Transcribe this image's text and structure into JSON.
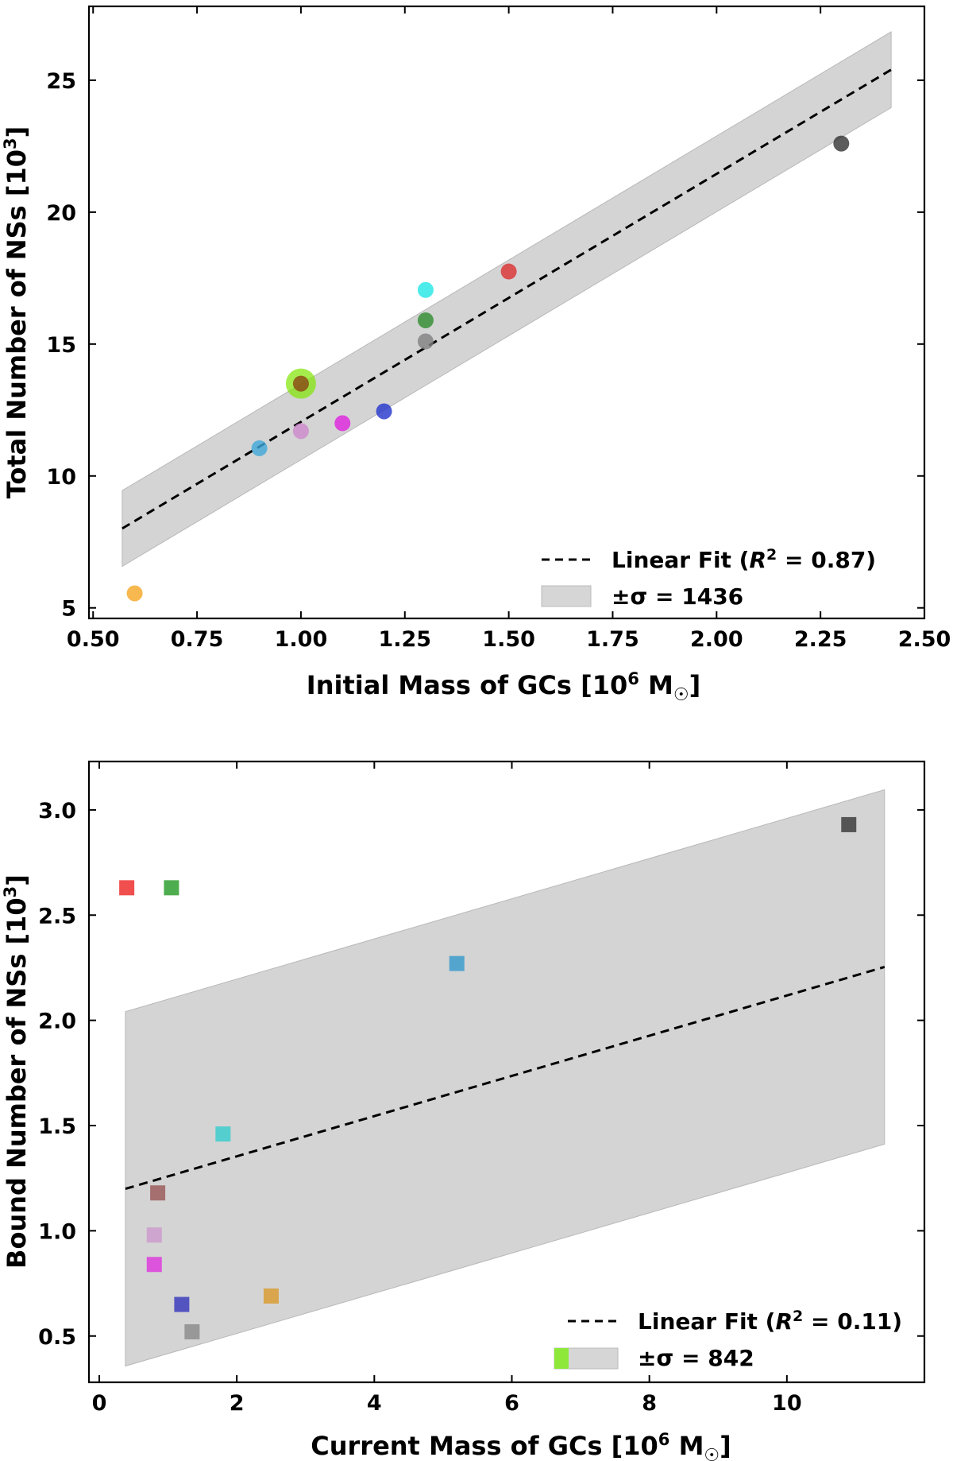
{
  "chart_data": [
    {
      "type": "scatter",
      "xlabel": "Initial Mass of GCs [10",
      "xlabel_exp": "6",
      "xlabel_unit": " M",
      "xlabel_sun": "☉",
      "xlabel_close": "]",
      "ylabel": "Total Number of NSs [10",
      "ylabel_exp": "3",
      "ylabel_close": "]",
      "xlim": [
        0.49,
        2.5
      ],
      "ylim": [
        4.6,
        27.8
      ],
      "xticks": [
        0.5,
        0.75,
        1.0,
        1.25,
        1.5,
        1.75,
        2.0,
        2.25,
        2.5
      ],
      "xtick_labels": [
        "0.50",
        "0.75",
        "1.00",
        "1.25",
        "1.50",
        "1.75",
        "2.00",
        "2.25",
        "2.50"
      ],
      "yticks": [
        5,
        10,
        15,
        20,
        25
      ],
      "ytick_labels": [
        "5",
        "10",
        "15",
        "20",
        "25"
      ],
      "fit": {
        "slope": 9.4,
        "intercept": 2.65,
        "x_start": 0.57,
        "x_end": 2.42,
        "sigma": 1.436
      },
      "points": [
        {
          "x": 0.6,
          "y": 5.55,
          "color": "#f5a623"
        },
        {
          "x": 0.9,
          "y": 11.05,
          "color": "#3fa8d8"
        },
        {
          "x": 1.0,
          "y": 11.7,
          "color": "#cc88cc"
        },
        {
          "x": 1.0,
          "y": 13.5,
          "color": "#7fe600",
          "large": true
        },
        {
          "x": 1.0,
          "y": 13.5,
          "color": "#8b4513"
        },
        {
          "x": 1.1,
          "y": 12.0,
          "color": "#dd22dd"
        },
        {
          "x": 1.2,
          "y": 12.45,
          "color": "#2233cc"
        },
        {
          "x": 1.3,
          "y": 15.1,
          "color": "#808080"
        },
        {
          "x": 1.3,
          "y": 15.9,
          "color": "#2e8b2e"
        },
        {
          "x": 1.3,
          "y": 17.05,
          "color": "#22e6e6"
        },
        {
          "x": 1.5,
          "y": 17.75,
          "color": "#d93030"
        },
        {
          "x": 2.3,
          "y": 22.6,
          "color": "#333333"
        }
      ],
      "legend": {
        "fit_prefix": "Linear Fit (",
        "fit_var": "R",
        "fit_exp": "2",
        "fit_suffix": " = 0.87)",
        "sigma_label": "±σ = 1436"
      }
    },
    {
      "type": "scatter",
      "xlabel": "Current Mass of GCs [10",
      "xlabel_exp": "6",
      "xlabel_unit": " M",
      "xlabel_sun": "☉",
      "xlabel_close": "]",
      "ylabel": "Bound Number of NSs [10",
      "ylabel_exp": "3",
      "ylabel_close": "]",
      "xlim": [
        -0.15,
        12.0
      ],
      "ylim": [
        0.28,
        3.23
      ],
      "xticks": [
        0,
        2,
        4,
        6,
        8,
        10
      ],
      "xtick_labels": [
        "0",
        "2",
        "4",
        "6",
        "8",
        "10"
      ],
      "yticks": [
        0.5,
        1.0,
        1.5,
        2.0,
        2.5,
        3.0
      ],
      "ytick_labels": [
        "0.5",
        "1.0",
        "1.5",
        "2.0",
        "2.5",
        "3.0"
      ],
      "fit": {
        "slope": 0.0955,
        "intercept": 1.163,
        "x_start": 0.38,
        "x_end": 11.42,
        "sigma": 0.842
      },
      "points": [
        {
          "x": 0.4,
          "y": 2.63,
          "color": "#ee2222"
        },
        {
          "x": 1.05,
          "y": 2.63,
          "color": "#229922"
        },
        {
          "x": 0.85,
          "y": 1.18,
          "color": "#995555"
        },
        {
          "x": 0.8,
          "y": 0.98,
          "color": "#cc99cc"
        },
        {
          "x": 0.8,
          "y": 0.84,
          "color": "#dd33dd"
        },
        {
          "x": 1.2,
          "y": 0.65,
          "color": "#3333bb"
        },
        {
          "x": 1.35,
          "y": 0.52,
          "color": "#888888"
        },
        {
          "x": 1.8,
          "y": 1.46,
          "color": "#33cccc"
        },
        {
          "x": 2.5,
          "y": 0.69,
          "color": "#d99a2b"
        },
        {
          "x": 5.2,
          "y": 2.27,
          "color": "#3399cc"
        },
        {
          "x": 10.9,
          "y": 2.93,
          "color": "#333333"
        }
      ],
      "legend": {
        "fit_prefix": "Linear Fit (",
        "fit_var": "R",
        "fit_exp": "2",
        "fit_suffix": " = 0.11)",
        "sigma_label": "±σ = 842"
      }
    }
  ]
}
